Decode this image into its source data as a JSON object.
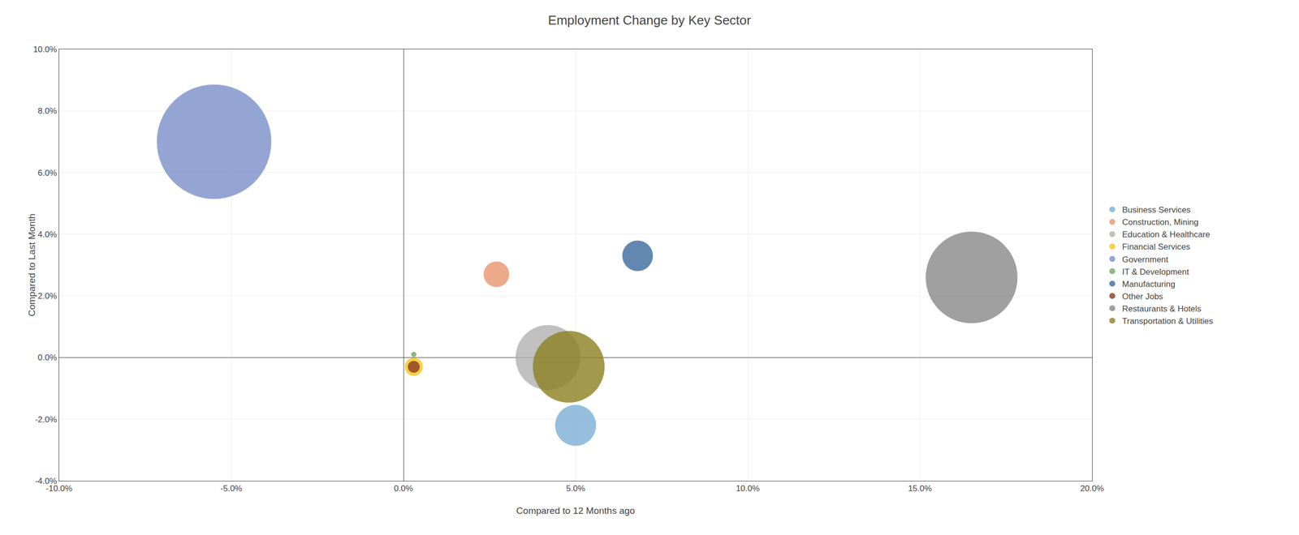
{
  "chart_data": {
    "type": "scatter",
    "marker": "bubble",
    "title": "Employment Change by Key Sector",
    "xlabel": "Compared to 12 Months ago",
    "ylabel": "Compared to Last Month",
    "xlim": [
      -0.1,
      0.2
    ],
    "ylim": [
      -0.04,
      0.1
    ],
    "xticks": [
      {
        "value": -0.1,
        "label": "-10.0%"
      },
      {
        "value": -0.05,
        "label": "-5.0%"
      },
      {
        "value": 0.0,
        "label": "0.0%"
      },
      {
        "value": 0.05,
        "label": "5.0%"
      },
      {
        "value": 0.1,
        "label": "10.0%"
      },
      {
        "value": 0.15,
        "label": "15.0%"
      },
      {
        "value": 0.2,
        "label": "20.0%"
      }
    ],
    "yticks": [
      {
        "value": -0.04,
        "label": "-4.0%"
      },
      {
        "value": -0.02,
        "label": "-2.0%"
      },
      {
        "value": 0.0,
        "label": "0.0%"
      },
      {
        "value": 0.02,
        "label": "2.0%"
      },
      {
        "value": 0.04,
        "label": "4.0%"
      },
      {
        "value": 0.06,
        "label": "6.0%"
      },
      {
        "value": 0.08,
        "label": "8.0%"
      },
      {
        "value": 0.1,
        "label": "10.0%"
      }
    ],
    "grid": true,
    "legend": "right",
    "series": [
      {
        "name": "Business Services",
        "color": "#7bafd4",
        "x": [
          0.05
        ],
        "values": [
          -0.022
        ],
        "size": [
          1800
        ]
      },
      {
        "name": "Construction, Mining",
        "color": "#e8956d",
        "x": [
          0.027
        ],
        "values": [
          0.027
        ],
        "size": [
          700
        ]
      },
      {
        "name": "Education & Healthcare",
        "color": "#b0b0b0",
        "x": [
          0.042
        ],
        "values": [
          0.0
        ],
        "size": [
          4500
        ]
      },
      {
        "name": "Financial Services",
        "color": "#f5c518",
        "x": [
          0.003
        ],
        "values": [
          -0.003
        ],
        "size": [
          350
        ]
      },
      {
        "name": "Government",
        "color": "#7b8ec8",
        "x": [
          -0.055
        ],
        "values": [
          0.07
        ],
        "size": [
          14000
        ]
      },
      {
        "name": "IT & Development",
        "color": "#70a860",
        "x": [
          0.003
        ],
        "values": [
          0.001
        ],
        "size": [
          30
        ]
      },
      {
        "name": "Manufacturing",
        "color": "#3b6a9e",
        "x": [
          0.068
        ],
        "values": [
          0.033
        ],
        "size": [
          1000
        ]
      },
      {
        "name": "Other Jobs",
        "color": "#8b3a20",
        "x": [
          0.003
        ],
        "values": [
          -0.003
        ],
        "size": [
          150
        ]
      },
      {
        "name": "Restaurants & Hotels",
        "color": "#888888",
        "x": [
          0.165
        ],
        "values": [
          0.026
        ],
        "size": [
          9000
        ]
      },
      {
        "name": "Transportation & Utilities",
        "color": "#8b8020",
        "x": [
          0.048
        ],
        "values": [
          -0.003
        ],
        "size": [
          5500
        ]
      }
    ]
  }
}
